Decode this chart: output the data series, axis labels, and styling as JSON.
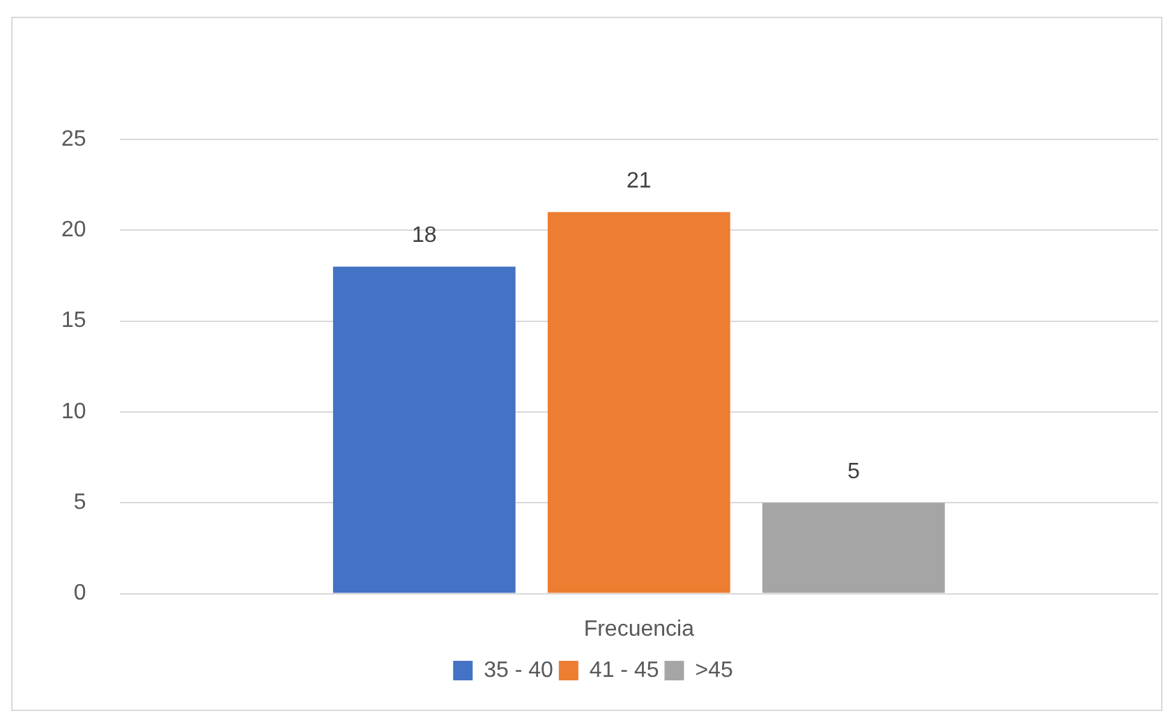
{
  "chart_data": {
    "type": "bar",
    "categories": [
      "Frecuencia"
    ],
    "series": [
      {
        "name": "35 - 40",
        "color": "#4472c4",
        "values": [
          18
        ]
      },
      {
        "name": "41 - 45",
        "color": "#ed7d31",
        "values": [
          21
        ]
      },
      {
        "name": ">45",
        "color": "#a5a5a5",
        "values": [
          5
        ]
      }
    ],
    "ylim": [
      0,
      25
    ],
    "yticks": [
      0,
      5,
      10,
      15,
      20,
      25
    ],
    "grid": "y",
    "legend": "bottom",
    "data_labels": true
  }
}
